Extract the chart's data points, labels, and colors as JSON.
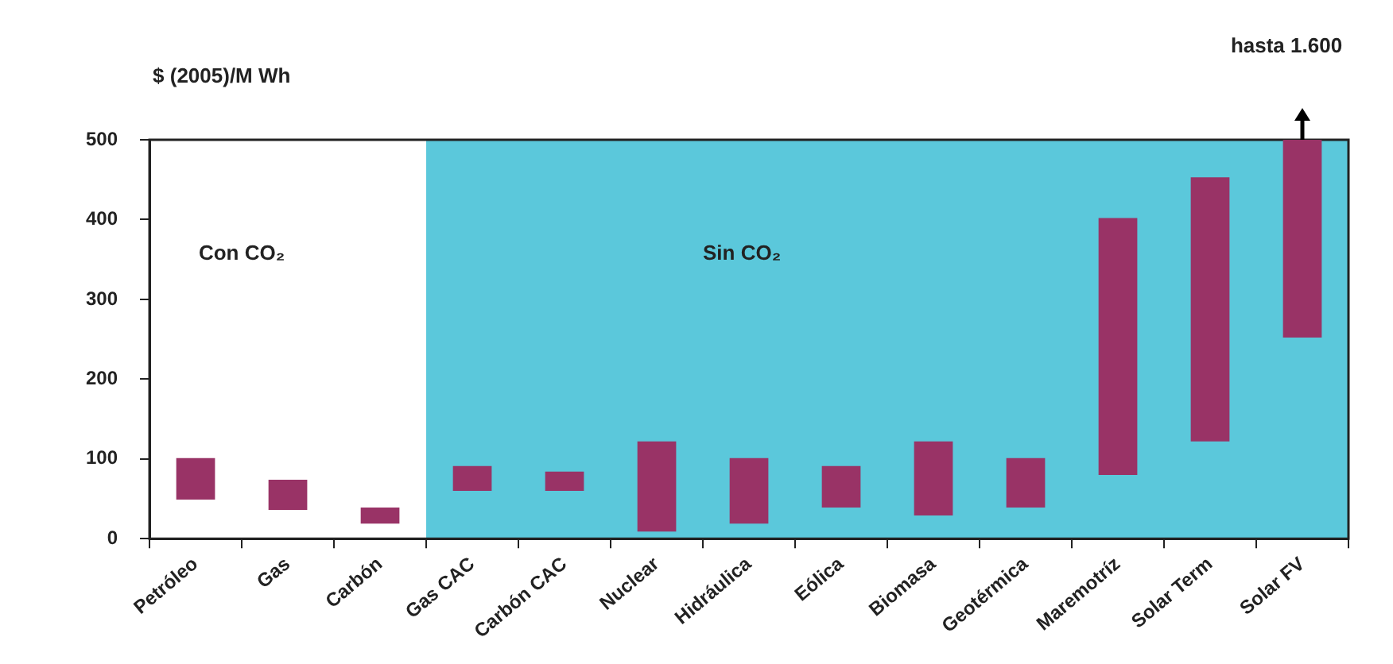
{
  "chart_data": {
    "type": "bar",
    "ylabel": "$ (2005)/M Wh",
    "categories": [
      "Petróleo",
      "Gas",
      "Carbón",
      "Gas CAC",
      "Carbón CAC",
      "Nuclear",
      "Hidráulica",
      "Eólica",
      "Biomasa",
      "Geotérmica",
      "Maremotríz",
      "Solar Term",
      "Solar FV"
    ],
    "base": [
      49,
      36,
      19,
      60,
      60,
      9,
      19,
      39,
      29,
      39,
      80,
      122,
      252
    ],
    "values": [
      52,
      38,
      20,
      31,
      24,
      113,
      82,
      52,
      93,
      62,
      322,
      331,
      248
    ],
    "color": "#993366",
    "ylim": [
      0,
      500
    ],
    "yticks": [
      0,
      100,
      200,
      300,
      400,
      500
    ],
    "grid": false,
    "legend": false,
    "bands": [
      {
        "axis": "x",
        "from": "Gas CAC",
        "to": "Solar FV",
        "color": "#5bc8db"
      }
    ],
    "annotations": [
      "Con CO₂",
      "Sin CO₂",
      "hasta 1.600"
    ]
  }
}
